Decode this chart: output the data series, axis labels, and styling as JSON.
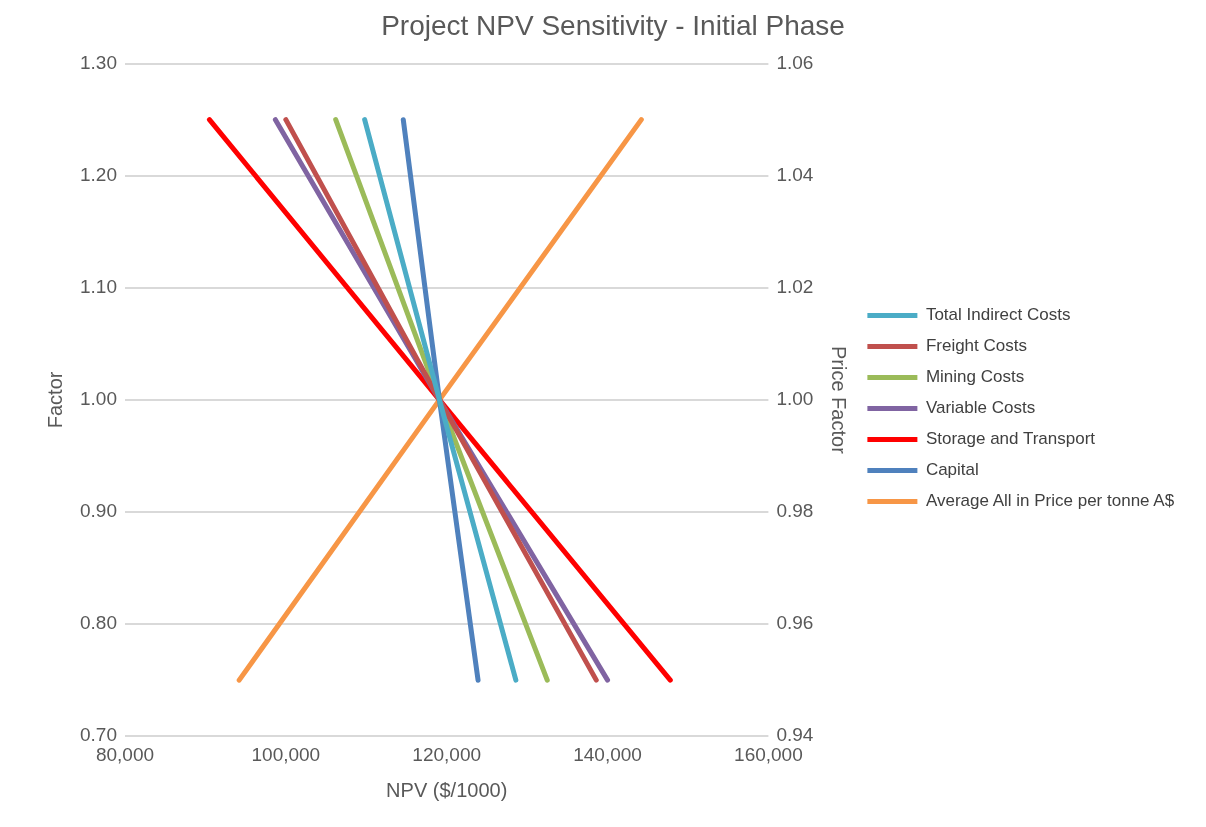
{
  "chart_data": {
    "type": "line",
    "title": "Project NPV Sensitivity - Initial Phase",
    "xlabel": "NPV ($/1000)",
    "ylabel": "Factor",
    "y2label": "Price Factor",
    "xlim": [
      80000,
      160000
    ],
    "xticks": [
      {
        "value": 80000,
        "label": "80,000"
      },
      {
        "value": 100000,
        "label": "100,000"
      },
      {
        "value": 120000,
        "label": "120,000"
      },
      {
        "value": 140000,
        "label": "140,000"
      },
      {
        "value": 160000,
        "label": "160,000"
      }
    ],
    "ylim": [
      0.7,
      1.3
    ],
    "yticks": [
      {
        "value": 0.7,
        "label": "0.70"
      },
      {
        "value": 0.8,
        "label": "0.80"
      },
      {
        "value": 0.9,
        "label": "0.90"
      },
      {
        "value": 1.0,
        "label": "1.00"
      },
      {
        "value": 1.1,
        "label": "1.10"
      },
      {
        "value": 1.2,
        "label": "1.20"
      },
      {
        "value": 1.3,
        "label": "1.30"
      }
    ],
    "y2lim": [
      0.94,
      1.06
    ],
    "y2ticks": [
      {
        "value": 0.94,
        "label": "0.94"
      },
      {
        "value": 0.96,
        "label": "0.96"
      },
      {
        "value": 0.98,
        "label": "0.98"
      },
      {
        "value": 1.0,
        "label": "1.00"
      },
      {
        "value": 1.02,
        "label": "1.02"
      },
      {
        "value": 1.04,
        "label": "1.04"
      },
      {
        "value": 1.06,
        "label": "1.06"
      }
    ],
    "grid": "y",
    "legend": "right",
    "marker": "none",
    "line_style": "solid",
    "series": [
      {
        "name": "Total Indirect Costs",
        "color": "#4bacc6",
        "x": [
          109800,
          119100,
          128600
        ],
        "values": [
          1.25,
          1.0,
          0.75
        ]
      },
      {
        "name": "Freight Costs",
        "color": "#c0504d",
        "x": [
          100000,
          119100,
          138600
        ],
        "values": [
          1.25,
          1.0,
          0.75
        ]
      },
      {
        "name": "Mining Costs",
        "color": "#9bbb59",
        "x": [
          106200,
          119100,
          132500
        ],
        "values": [
          1.25,
          1.0,
          0.75
        ]
      },
      {
        "name": "Variable Costs",
        "color": "#8064a2",
        "x": [
          98700,
          119100,
          140000
        ],
        "values": [
          1.25,
          1.0,
          0.75
        ]
      },
      {
        "name": "Storage and Transport",
        "color": "#ff0000",
        "x": [
          90500,
          119100,
          147800
        ],
        "values": [
          1.25,
          1.0,
          0.75
        ]
      },
      {
        "name": "Capital",
        "color": "#4f81bd",
        "x": [
          114600,
          119100,
          123900
        ],
        "values": [
          1.25,
          1.0,
          0.75
        ]
      },
      {
        "name": "Average All in Price per tonne A$",
        "color": "#f79646",
        "axis": "y2",
        "x": [
          144200,
          119100,
          94200
        ],
        "values": [
          1.05,
          1.0,
          0.95
        ]
      }
    ]
  }
}
